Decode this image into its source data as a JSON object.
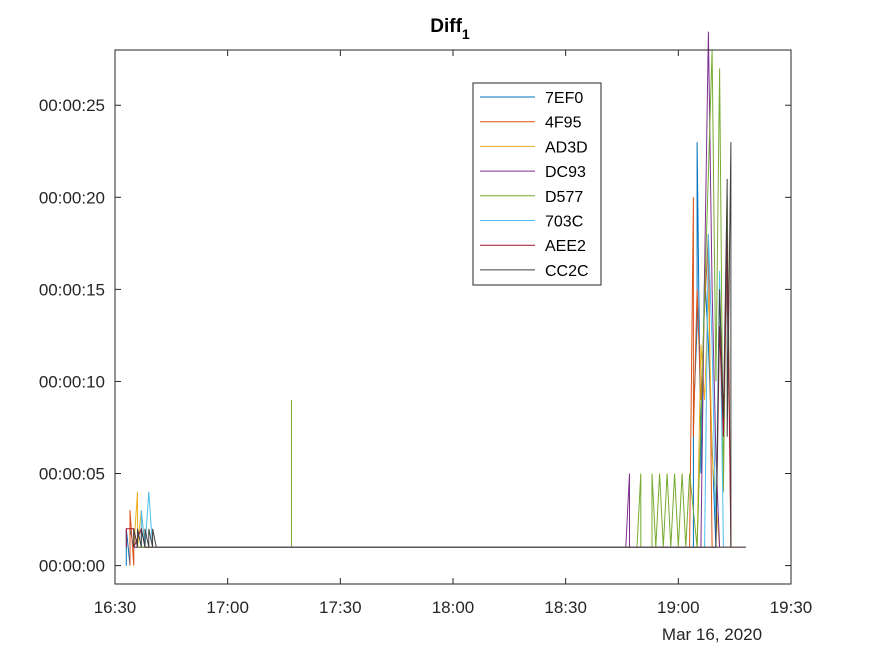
{
  "chart_data": {
    "type": "line",
    "title": "Diff",
    "title_subscript": "1",
    "xlabel": "",
    "ylabel": "",
    "date_label": "Mar 16, 2020",
    "x_range": [
      "16:30",
      "19:30"
    ],
    "x_ticks": [
      "16:30",
      "17:00",
      "17:30",
      "18:00",
      "18:30",
      "19:00",
      "19:30"
    ],
    "y_range_seconds": [
      -1,
      28
    ],
    "y_ticks": [
      "00:00:00",
      "00:00:05",
      "00:00:10",
      "00:00:15",
      "00:00:20",
      "00:00:25"
    ],
    "legend_position": "top-right-inside",
    "grid": false,
    "baseline_seconds": 1,
    "series": [
      {
        "name": "7EF0",
        "color": "#0072BD",
        "points": [
          [
            "16:33",
            0
          ],
          [
            "16:33",
            2
          ],
          [
            "16:34",
            0
          ],
          [
            "16:34",
            2
          ],
          [
            "16:35",
            1
          ],
          [
            "16:38",
            1
          ],
          [
            "19:04",
            1
          ],
          [
            "19:04",
            8
          ],
          [
            "19:05",
            13
          ],
          [
            "19:05",
            23
          ],
          [
            "19:06",
            5
          ],
          [
            "19:07",
            16
          ],
          [
            "19:08",
            12
          ],
          [
            "19:10",
            1
          ],
          [
            "19:18",
            1
          ]
        ]
      },
      {
        "name": "4F95",
        "color": "#D95319",
        "points": [
          [
            "16:34",
            0
          ],
          [
            "16:34",
            3
          ],
          [
            "16:35",
            0
          ],
          [
            "16:35",
            2
          ],
          [
            "16:36",
            1
          ],
          [
            "19:03",
            1
          ],
          [
            "19:04",
            20
          ],
          [
            "19:04",
            7
          ],
          [
            "19:05",
            15
          ],
          [
            "19:06",
            9
          ],
          [
            "19:07",
            14
          ],
          [
            "19:08",
            18
          ],
          [
            "19:09",
            1
          ],
          [
            "19:18",
            1
          ]
        ]
      },
      {
        "name": "AD3D",
        "color": "#EDB120",
        "points": [
          [
            "16:35",
            1
          ],
          [
            "16:36",
            4
          ],
          [
            "16:36",
            1
          ],
          [
            "16:37",
            3
          ],
          [
            "16:38",
            1
          ],
          [
            "19:05",
            1
          ],
          [
            "19:06",
            12
          ],
          [
            "19:07",
            9
          ],
          [
            "19:08",
            15
          ],
          [
            "19:09",
            6
          ],
          [
            "19:11",
            1
          ]
        ]
      },
      {
        "name": "DC93",
        "color": "#7E2F8E",
        "points": [
          [
            "16:35",
            1
          ],
          [
            "18:46",
            1
          ],
          [
            "18:47",
            5
          ],
          [
            "18:47",
            1
          ],
          [
            "19:06",
            1
          ],
          [
            "19:07",
            16
          ],
          [
            "19:08",
            29
          ],
          [
            "19:09",
            15
          ],
          [
            "19:10",
            6
          ],
          [
            "19:11",
            1
          ]
        ]
      },
      {
        "name": "D577",
        "color": "#77AC30",
        "points": [
          [
            "16:36",
            1
          ],
          [
            "17:17",
            1
          ],
          [
            "17:17",
            9
          ],
          [
            "17:17",
            1
          ],
          [
            "18:49",
            1
          ],
          [
            "18:50",
            5
          ],
          [
            "18:50",
            1
          ],
          [
            "18:53",
            1
          ],
          [
            "18:53",
            5
          ],
          [
            "18:54",
            1
          ],
          [
            "18:55",
            5
          ],
          [
            "18:56",
            1
          ],
          [
            "18:57",
            5
          ],
          [
            "18:58",
            1
          ],
          [
            "18:59",
            5
          ],
          [
            "19:00",
            1
          ],
          [
            "19:01",
            5
          ],
          [
            "19:02",
            1
          ],
          [
            "19:03",
            5
          ],
          [
            "19:05",
            1
          ],
          [
            "19:09",
            28
          ],
          [
            "19:10",
            10
          ],
          [
            "19:11",
            27
          ],
          [
            "19:12",
            4
          ],
          [
            "19:13",
            20
          ],
          [
            "19:14",
            1
          ]
        ]
      },
      {
        "name": "703C",
        "color": "#4DBEEE",
        "points": [
          [
            "16:37",
            1
          ],
          [
            "16:37",
            3
          ],
          [
            "16:38",
            1
          ],
          [
            "16:39",
            4
          ],
          [
            "16:40",
            1
          ],
          [
            "19:07",
            1
          ],
          [
            "19:08",
            18
          ],
          [
            "19:09",
            12
          ],
          [
            "19:10",
            2
          ],
          [
            "19:11",
            16
          ],
          [
            "19:12",
            1
          ]
        ]
      },
      {
        "name": "AEE2",
        "color": "#A2142F",
        "points": [
          [
            "16:33",
            1
          ],
          [
            "16:33",
            2
          ],
          [
            "16:35",
            2
          ],
          [
            "16:35",
            1
          ],
          [
            "16:37",
            2
          ],
          [
            "16:38",
            1
          ],
          [
            "19:10",
            1
          ],
          [
            "19:11",
            13
          ],
          [
            "19:12",
            7
          ],
          [
            "19:13",
            18
          ],
          [
            "19:14",
            1
          ]
        ]
      },
      {
        "name": "CC2C",
        "color": "#404040",
        "points": [
          [
            "16:35",
            1
          ],
          [
            "16:35",
            2
          ],
          [
            "16:36",
            1
          ],
          [
            "16:36",
            2
          ],
          [
            "16:37",
            1
          ],
          [
            "16:37",
            2
          ],
          [
            "16:38",
            1
          ],
          [
            "16:38",
            2
          ],
          [
            "16:39",
            1
          ],
          [
            "16:39",
            2
          ],
          [
            "16:40",
            1
          ],
          [
            "16:40",
            2
          ],
          [
            "16:41",
            1
          ],
          [
            "19:10",
            1
          ],
          [
            "19:11",
            15
          ],
          [
            "19:12",
            8
          ],
          [
            "19:13",
            21
          ],
          [
            "19:13",
            7
          ],
          [
            "19:14",
            23
          ],
          [
            "19:14",
            1
          ]
        ]
      }
    ]
  }
}
